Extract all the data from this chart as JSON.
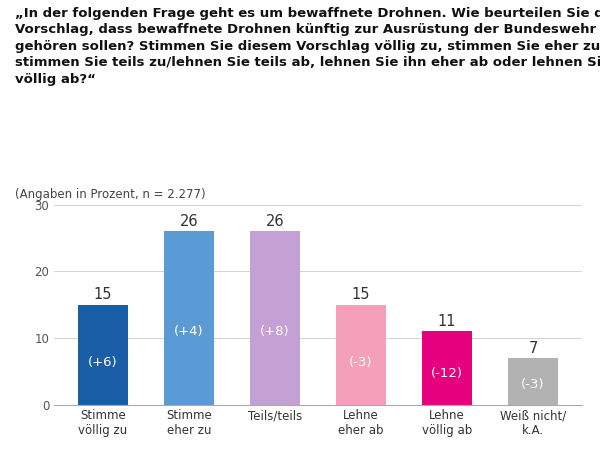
{
  "title_text": "„In der folgenden Frage geht es um bewaffnete Drohnen. Wie beurteilen Sie den\nVorschlag, dass bewaffnete Drohnen künftig zur Ausrüstung der Bundeswehr\ngehören sollen? Stimmen Sie diesem Vorschlag völlig zu, stimmen Sie eher zu,\nstimmen Sie teils zu/lehnen Sie teils ab, lehnen Sie ihn eher ab oder lehnen Sie ihn\nvöllig ab?“",
  "subtitle": "(Angaben in Prozent, n = 2.277)",
  "categories": [
    "Stimme\nvöllig zu",
    "Stimme\neher zu",
    "Teils/teils",
    "Lehne\neher ab",
    "Lehne\nvöllig ab",
    "Weiß nicht/\nk.A."
  ],
  "values": [
    15,
    26,
    26,
    15,
    11,
    7
  ],
  "changes": [
    "(+6)",
    "(+4)",
    "(+8)",
    "(-3)",
    "(-12)",
    "(-3)"
  ],
  "bar_colors": [
    "#1a5ea8",
    "#5b9bd5",
    "#c4a0d4",
    "#f4a0b8",
    "#e6007e",
    "#b2b2b2"
  ],
  "value_color": "#333333",
  "change_color": "#ffffff",
  "ylim": [
    0,
    30
  ],
  "yticks": [
    0,
    10,
    20,
    30
  ],
  "background_color": "#ffffff",
  "value_fontsize": 10.5,
  "change_fontsize": 9.5,
  "tick_fontsize": 8.5,
  "title_fontsize": 9.5,
  "subtitle_fontsize": 8.5
}
